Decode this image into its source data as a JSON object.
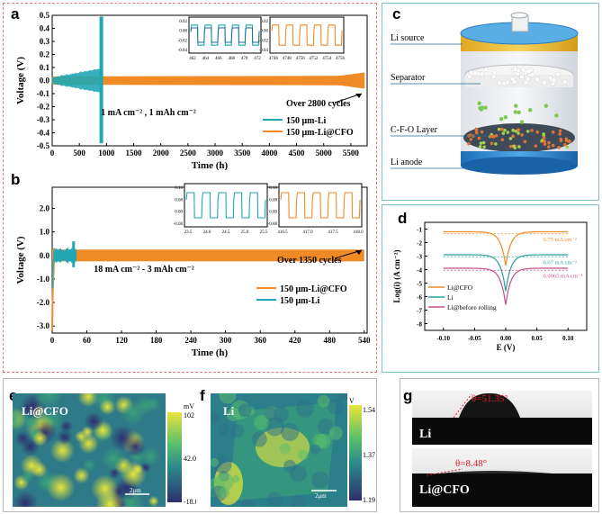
{
  "panels": {
    "a": "a",
    "b": "b",
    "c": "c",
    "d": "d",
    "e": "e",
    "f": "f",
    "g": "g"
  },
  "colors": {
    "teal": "#1fa7b5",
    "orange": "#f08a24",
    "pink": "#c0508a",
    "dash_red": "#e07a7a",
    "frame_teal": "#7cc4c4"
  },
  "chart_data": [
    {
      "id": "a",
      "type": "line",
      "xlabel": "Time (h)",
      "ylabel": "Voltage (V)",
      "xlim": [
        0,
        5800
      ],
      "ylim": [
        -0.5,
        0.5
      ],
      "xticks": [
        0,
        500,
        1000,
        1500,
        2000,
        2500,
        3000,
        3500,
        4000,
        4500,
        5000,
        5500
      ],
      "yticks": [
        -0.5,
        -0.4,
        -0.3,
        -0.2,
        -0.1,
        0.0,
        0.1,
        0.2,
        0.3,
        0.4,
        0.5
      ],
      "ytick_labels": [
        "-0.5",
        "-0.4",
        "-0.3",
        "-0.2",
        "-0.1",
        "0.0",
        "0.1",
        "0.2",
        "0.3",
        "0.4",
        "0.5"
      ],
      "condition": "1 mA cm⁻² , 1 mAh cm⁻²",
      "annotation": "Over 2800 cycles",
      "series": [
        {
          "name": "150 μm-Li",
          "color": "#1fa7b5",
          "end_hour": 930,
          "band_start": 0.02,
          "band_end": 0.09,
          "spike_hour": 905,
          "spike_min": -0.48,
          "spike_max": 0.49
        },
        {
          "name": "150 μm-Li@CFO",
          "color": "#f08a24",
          "end_hour": 5750,
          "band_start": 0.03,
          "band_end": 0.035,
          "band_final": 0.06
        }
      ],
      "insets": [
        {
          "xticks": [
            "462",
            "464",
            "466",
            "468",
            "470",
            "472"
          ],
          "yticks": [
            "0.02",
            "0.00",
            "-0.02",
            "-0.04"
          ],
          "cycles": 5,
          "color": "#1fa7b5",
          "overlay": "#1f6e8c"
        },
        {
          "xticks": [
            "4746",
            "4748",
            "4750",
            "4752",
            "4754",
            "4756"
          ],
          "yticks": [
            "0.02",
            "0.00",
            "-0.02",
            "-0.04"
          ],
          "cycles": 5,
          "color": "#f08a24"
        }
      ]
    },
    {
      "id": "b",
      "type": "line",
      "xlabel": "Time (h)",
      "ylabel": "Voltage (V)",
      "xlim": [
        0,
        545
      ],
      "ylim": [
        -3.3,
        2.9
      ],
      "xticks": [
        0,
        60,
        120,
        180,
        240,
        300,
        360,
        420,
        480,
        540
      ],
      "yticks": [
        -3.0,
        -2.0,
        -1.0,
        0.0,
        1.0,
        2.0
      ],
      "ytick_labels": [
        "-3.0",
        "-2.0",
        "-1.0",
        "0.0",
        "1.0",
        "2.0"
      ],
      "condition": "18 mA cm⁻² - 3 mAh cm⁻²",
      "annotation": "Over 1350 cycles",
      "series": [
        {
          "name": "150 μm-Li@CFO",
          "color": "#f08a24",
          "end_hour": 540,
          "band": 0.25
        },
        {
          "name": "150 μm-Li",
          "color": "#1fa7b5",
          "end_hour": 42,
          "band": 0.3,
          "spike_hour": 37,
          "spike_min": -0.5,
          "spike_max": 0.6
        }
      ],
      "insets": [
        {
          "xticks": [
            "23.5",
            "24.0",
            "24.5",
            "25.0",
            "25.5"
          ],
          "yticks": [
            "0.16",
            "0.08",
            "0.00",
            "-0.08"
          ],
          "cycles": 5,
          "color": "#1fa7b5"
        },
        {
          "xticks": [
            "416.5",
            "417.0",
            "417.5",
            "418.0"
          ],
          "yticks": [
            "0.16",
            "0.08",
            "0.00",
            "-0.08"
          ],
          "cycles": 5,
          "color": "#f08a24"
        }
      ]
    },
    {
      "id": "d",
      "type": "line",
      "xlabel": "E (V)",
      "ylabel": "Log(i) (A cm⁻²)",
      "xlim": [
        -0.13,
        0.13
      ],
      "ylim": [
        -8.5,
        -0.5
      ],
      "xticks": [
        -0.1,
        -0.05,
        0.0,
        0.05,
        0.1
      ],
      "xtick_labels": [
        "-0.10",
        "-0.05",
        "0.00",
        "0.05",
        "0.10"
      ],
      "yticks": [
        -8,
        -7,
        -6,
        -5,
        -4,
        -3,
        -2,
        -1
      ],
      "ytick_labels": [
        "-8",
        "-7",
        "-6",
        "-5",
        "-4",
        "-3",
        "-2",
        "-1"
      ],
      "series": [
        {
          "name": "Li@CFO",
          "color": "#f08a24",
          "plateau": -1.2,
          "valley": -3.7,
          "label": "6.75 mA cm⁻²"
        },
        {
          "name": "Li",
          "color": "#2a9d9d",
          "plateau": -2.9,
          "valley": -5.6,
          "label": "0.07 mA cm⁻²"
        },
        {
          "name": "Li@before rolling",
          "color": "#c0508a",
          "plateau": -3.9,
          "valley": -6.6,
          "label": "0.0065 mA cm⁻²"
        }
      ]
    }
  ],
  "panel_c": {
    "labels": [
      "Li source",
      "Separator",
      "C-F-O Layer",
      "Li anode"
    ]
  },
  "panel_e": {
    "title": "Li@CFO",
    "unit": "mV",
    "scale_max": "102",
    "scale_mid": "42.0",
    "scale_min": "-18.0",
    "scalebar": "2μm"
  },
  "panel_f": {
    "title": "Li",
    "unit": "V",
    "scale_max": "1.54",
    "scale_mid": "1.37",
    "scale_min": "1.19",
    "scalebar": "2μm"
  },
  "panel_g": {
    "angle_top": "θ=51.35°",
    "label_top": "Li",
    "angle_bottom": "θ=8.48°",
    "label_bottom": "Li@CFO"
  }
}
